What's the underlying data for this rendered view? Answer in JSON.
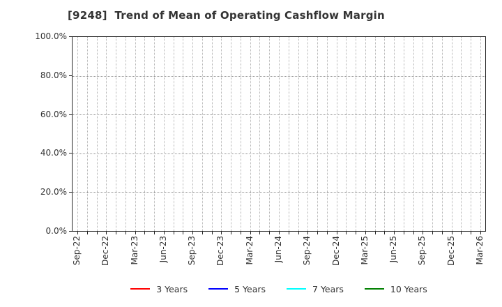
{
  "chart_data": {
    "type": "line",
    "title": "[9248]  Trend of Mean of Operating Cashflow Margin",
    "xlabel": "",
    "ylabel": "",
    "ylim": [
      0,
      100
    ],
    "y_ticks": [
      0,
      20,
      40,
      60,
      80,
      100
    ],
    "y_tick_labels": [
      "0.0%",
      "20.0%",
      "40.0%",
      "60.0%",
      "80.0%",
      "100.0%"
    ],
    "x_tick_labels": [
      "Sep-22",
      "Dec-22",
      "Mar-23",
      "Jun-23",
      "Sep-23",
      "Dec-23",
      "Mar-24",
      "Jun-24",
      "Sep-24",
      "Dec-24",
      "Mar-25",
      "Jun-25",
      "Sep-25",
      "Dec-25",
      "Mar-26"
    ],
    "x_months_per_labeled_tick": 3,
    "x_total_month_intervals": 42,
    "grid": true,
    "grid_style": "dotted",
    "legend_position": "bottom-center",
    "series": [
      {
        "name": "3 Years",
        "color": "#ff0000",
        "values": []
      },
      {
        "name": "5 Years",
        "color": "#0000ff",
        "values": []
      },
      {
        "name": "7 Years",
        "color": "#00ffff",
        "values": []
      },
      {
        "name": "10 Years",
        "color": "#008000",
        "values": []
      }
    ],
    "plot_is_empty": true
  },
  "colors": {
    "background": "#ffffff",
    "axis_border": "#262626",
    "horizontal_grid": "#8f8f8f",
    "vertical_grid": "#b3b3b3",
    "title_text": "#333333",
    "tick_text": "#333333",
    "legend_text": "#333333"
  }
}
